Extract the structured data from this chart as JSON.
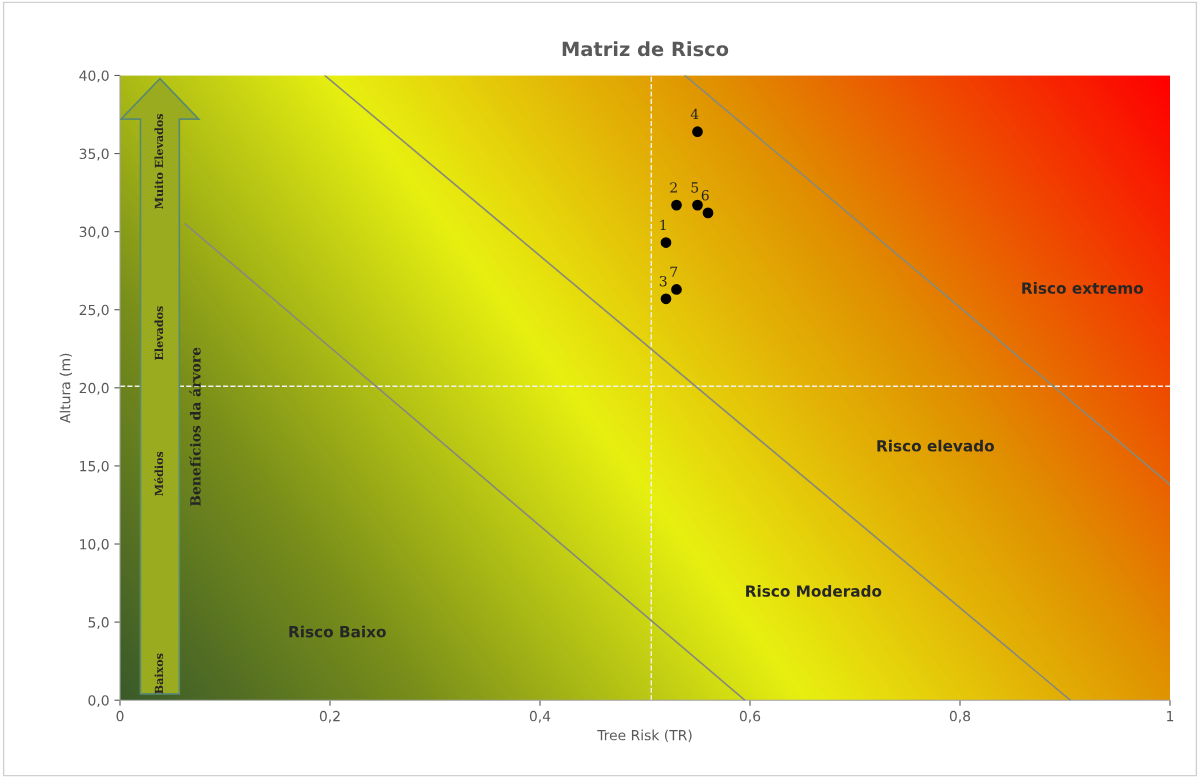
{
  "chart_data": {
    "type": "scatter",
    "title": "Matriz de Risco",
    "xlabel": "Tree Risk (TR)",
    "ylabel": "Altura (m)",
    "series": [
      {
        "marker": "circle",
        "color": "#000000",
        "x": [
          0.52,
          0.53,
          0.52,
          0.55,
          0.55,
          0.56,
          0.53
        ],
        "values": [
          29.3,
          31.7,
          25.7,
          36.4,
          31.7,
          31.2,
          26.3
        ]
      },
      {
        "type": "line",
        "marker": "none",
        "color": "#8a8a78",
        "x": [
          0.062,
          0.595
        ],
        "values": [
          30.5,
          0
        ]
      },
      {
        "type": "line",
        "marker": "none",
        "color": "#8a8a78",
        "x": [
          0.195,
          0.905
        ],
        "values": [
          40,
          0
        ]
      },
      {
        "type": "line",
        "marker": "none",
        "color": "#8a8a78",
        "x": [
          0.538,
          1
        ],
        "values": [
          40,
          13.8
        ]
      }
    ],
    "xlim": [
      0,
      1
    ],
    "ylim": [
      0,
      40
    ],
    "xticks": [
      0,
      {
        "value": 0.2,
        "label": "0,2"
      },
      {
        "value": 0.4,
        "label": "0,4"
      },
      {
        "value": 0.6,
        "label": "0,6"
      },
      {
        "value": 0.8,
        "label": "0,8"
      },
      1
    ],
    "yticks": [
      {
        "value": 0,
        "label": "0,0"
      },
      {
        "value": 5,
        "label": "5,0"
      },
      {
        "value": 10,
        "label": "10,0"
      },
      {
        "value": 15,
        "label": "15,0"
      },
      {
        "value": 20,
        "label": "20,0"
      },
      {
        "value": 25,
        "label": "25,0"
      },
      {
        "value": 30,
        "label": "30,0"
      },
      {
        "value": 35,
        "label": "35,0"
      },
      {
        "value": 40,
        "label": "40,0"
      }
    ],
    "ref_lines": [
      {
        "axis": "x",
        "value": 0.506,
        "color": "#f0f0f0",
        "line_style": "dashed"
      },
      {
        "axis": "y",
        "value": 20.1,
        "color": "#f0f0f0",
        "line_style": "dashed"
      }
    ],
    "annotations": [
      {
        "text": "1",
        "x": 0.52,
        "y": 29.3
      },
      {
        "text": "2",
        "x": 0.53,
        "y": 31.7
      },
      {
        "text": "3",
        "x": 0.52,
        "y": 25.7
      },
      {
        "text": "4",
        "x": 0.55,
        "y": 36.4
      },
      {
        "text": "5",
        "x": 0.55,
        "y": 31.7
      },
      {
        "text": "6",
        "x": 0.56,
        "y": 31.2
      },
      {
        "text": "7",
        "x": 0.53,
        "y": 26.3
      },
      "Risco Baixo",
      "Risco Moderado",
      "Risco elevado",
      "Risco extremo",
      "Baixos",
      "Médios",
      "Elevados",
      "Muito Elevados",
      "Benefícios da árvore"
    ],
    "grid": false,
    "legend": false
  }
}
